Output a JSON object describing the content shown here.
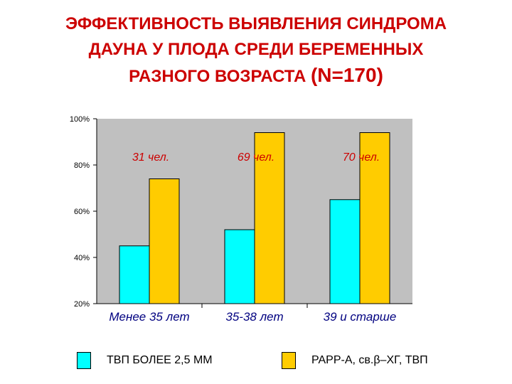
{
  "title": {
    "line1": "ЭФФЕКТИВНОСТЬ ВЫЯВЛЕНИЯ СИНДРОМА",
    "line2": "ДАУНА У ПЛОДА СРЕДИ БЕРЕМЕННЫХ",
    "line3_main": "РАЗНОГО ВОЗРАСТА ",
    "line3_n": "(N=170)"
  },
  "colors": {
    "title": "#cc0000",
    "series1": "#00ffff",
    "series2": "#ffcc00",
    "plot_bg": "#c0c0c0",
    "counts": "#cc0000",
    "categories": "#000080"
  },
  "chart_data": {
    "type": "bar",
    "categories": [
      "Менее 35 лет",
      "35-38 лет",
      "39 и старше"
    ],
    "group_labels": [
      "31 чел.",
      "69 чел.",
      "70 чел."
    ],
    "series": [
      {
        "name": "ТВП БОЛЕЕ 2,5 ММ",
        "values": [
          45,
          52,
          65
        ]
      },
      {
        "name": "PAPP-A, св.β–ХГ, ТВП",
        "values": [
          74,
          94,
          94
        ]
      }
    ],
    "yticks": [
      "20%",
      "40%",
      "60%",
      "80%",
      "100%"
    ],
    "ylim": [
      20,
      100
    ],
    "grid": false,
    "legend_position": "bottom"
  }
}
